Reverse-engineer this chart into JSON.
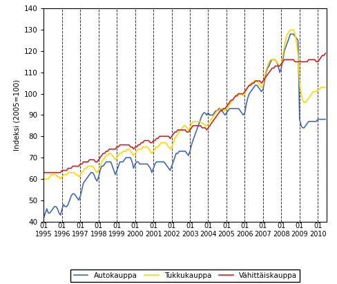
{
  "title": "",
  "ylabel": "Indeksi (2005=100)",
  "ylim": [
    40,
    140
  ],
  "yticks": [
    40,
    50,
    60,
    70,
    80,
    90,
    100,
    110,
    120,
    130,
    140
  ],
  "line_colors": {
    "auto": "#4169B0",
    "tukku": "#FFD700",
    "vahittais": "#CC2222"
  },
  "legend_labels": [
    "Autokauppa",
    "Tukkukauppa",
    "Vähittäiskauppa"
  ],
  "x_tick_years": [
    1995,
    1996,
    1997,
    1998,
    1999,
    2000,
    2001,
    2002,
    2003,
    2004,
    2005,
    2006,
    2007,
    2008,
    2009,
    2010
  ],
  "autokauppa": [
    42,
    44,
    46,
    44,
    44,
    45,
    46,
    47,
    47,
    46,
    44,
    43,
    46,
    48,
    47,
    47,
    48,
    50,
    52,
    53,
    53,
    52,
    51,
    50,
    52,
    55,
    58,
    59,
    60,
    61,
    62,
    63,
    63,
    62,
    60,
    59,
    61,
    64,
    66,
    66,
    67,
    68,
    68,
    68,
    68,
    66,
    64,
    62,
    64,
    66,
    68,
    68,
    68,
    69,
    70,
    70,
    70,
    70,
    68,
    65,
    67,
    68,
    68,
    67,
    67,
    67,
    67,
    67,
    67,
    66,
    65,
    63,
    65,
    67,
    68,
    68,
    68,
    68,
    68,
    68,
    67,
    66,
    65,
    64,
    66,
    68,
    70,
    72,
    72,
    73,
    73,
    73,
    73,
    73,
    72,
    71,
    73,
    76,
    78,
    80,
    82,
    84,
    86,
    88,
    90,
    91,
    91,
    90,
    91,
    90,
    90,
    90,
    91,
    92,
    92,
    93,
    93,
    92,
    91,
    90,
    91,
    92,
    93,
    93,
    93,
    93,
    93,
    93,
    93,
    92,
    91,
    90,
    91,
    95,
    98,
    100,
    101,
    102,
    103,
    104,
    104,
    103,
    102,
    101,
    102,
    106,
    110,
    112,
    113,
    115,
    116,
    116,
    116,
    115,
    113,
    110,
    112,
    116,
    120,
    122,
    124,
    126,
    128,
    128,
    128,
    127,
    126,
    125,
    88,
    85,
    84,
    84,
    85,
    86,
    87,
    87,
    87,
    87,
    87,
    87,
    88,
    88,
    88,
    88,
    88,
    88
  ],
  "tukkukauppa": [
    60,
    60,
    60,
    60,
    61,
    62,
    62,
    62,
    62,
    61,
    61,
    60,
    61,
    62,
    62,
    62,
    63,
    63,
    63,
    63,
    63,
    62,
    62,
    61,
    62,
    63,
    64,
    65,
    65,
    66,
    66,
    66,
    66,
    65,
    64,
    63,
    64,
    66,
    68,
    69,
    70,
    71,
    71,
    72,
    72,
    71,
    70,
    69,
    70,
    71,
    72,
    72,
    73,
    73,
    73,
    74,
    74,
    73,
    72,
    71,
    72,
    73,
    74,
    74,
    74,
    75,
    75,
    75,
    75,
    74,
    73,
    72,
    73,
    74,
    75,
    75,
    76,
    77,
    77,
    77,
    77,
    76,
    75,
    74,
    75,
    77,
    79,
    80,
    81,
    82,
    83,
    84,
    85,
    85,
    84,
    83,
    84,
    86,
    87,
    87,
    87,
    87,
    87,
    87,
    86,
    86,
    85,
    85,
    86,
    87,
    88,
    89,
    90,
    91,
    92,
    92,
    93,
    93,
    93,
    92,
    93,
    94,
    95,
    96,
    97,
    98,
    99,
    100,
    100,
    100,
    100,
    99,
    100,
    102,
    103,
    104,
    105,
    105,
    106,
    106,
    106,
    105,
    104,
    103,
    104,
    108,
    111,
    113,
    115,
    116,
    116,
    116,
    116,
    115,
    114,
    113,
    114,
    118,
    122,
    126,
    128,
    129,
    130,
    130,
    130,
    128,
    124,
    118,
    105,
    100,
    97,
    96,
    96,
    97,
    98,
    99,
    100,
    101,
    101,
    101,
    102,
    102,
    103,
    103,
    103,
    103
  ],
  "vahittaiskauppa": [
    63,
    63,
    63,
    63,
    63,
    63,
    63,
    63,
    63,
    63,
    63,
    63,
    64,
    64,
    64,
    64,
    65,
    65,
    65,
    66,
    66,
    66,
    66,
    66,
    67,
    67,
    68,
    68,
    68,
    68,
    69,
    69,
    69,
    69,
    68,
    68,
    69,
    70,
    71,
    72,
    72,
    73,
    73,
    74,
    74,
    74,
    74,
    74,
    75,
    75,
    76,
    76,
    76,
    76,
    76,
    76,
    76,
    75,
    75,
    74,
    75,
    75,
    76,
    76,
    77,
    77,
    78,
    78,
    78,
    78,
    77,
    77,
    78,
    78,
    79,
    79,
    80,
    80,
    80,
    80,
    80,
    80,
    80,
    79,
    80,
    81,
    82,
    82,
    83,
    83,
    83,
    83,
    83,
    83,
    82,
    82,
    83,
    84,
    85,
    85,
    85,
    85,
    85,
    85,
    84,
    84,
    84,
    83,
    84,
    85,
    86,
    87,
    88,
    89,
    90,
    91,
    92,
    92,
    93,
    93,
    94,
    95,
    96,
    97,
    97,
    98,
    99,
    99,
    100,
    100,
    100,
    100,
    101,
    102,
    103,
    104,
    104,
    105,
    105,
    106,
    106,
    106,
    106,
    105,
    106,
    107,
    108,
    109,
    110,
    111,
    112,
    112,
    113,
    113,
    113,
    113,
    114,
    115,
    116,
    116,
    116,
    116,
    116,
    116,
    116,
    115,
    115,
    115,
    115,
    115,
    115,
    115,
    115,
    115,
    116,
    116,
    116,
    116,
    116,
    115,
    115,
    116,
    117,
    118,
    118,
    119
  ]
}
